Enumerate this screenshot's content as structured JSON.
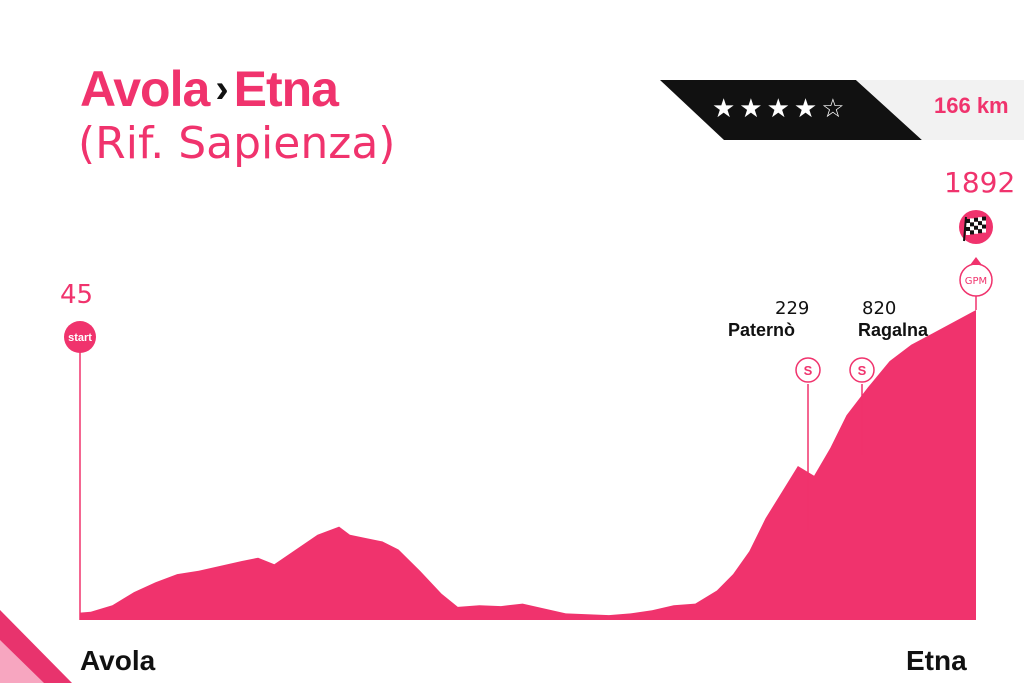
{
  "title": {
    "start": "Avola",
    "separator": "›",
    "end": "Etna",
    "subtitle": "(Rif. Sapienza)"
  },
  "difficulty": {
    "stars_text": "★★★★☆",
    "stars_filled": 4,
    "stars_total": 5
  },
  "distance": "166 km",
  "start_marker": {
    "altitude": "45",
    "label": "start"
  },
  "finish_marker": {
    "altitude": "1892",
    "label": "GPM",
    "icon": "checkered-flag-icon"
  },
  "sprints": [
    {
      "altitude": "229",
      "town": "Paternò",
      "label": "S"
    },
    {
      "altitude": "820",
      "town": "Ragalna",
      "label": "S"
    }
  ],
  "bottom": {
    "start_place": "Avola",
    "end_place": "Etna"
  },
  "colors": {
    "accent": "#f0336d",
    "dark": "#111111",
    "light_band": "#f2f2f2"
  },
  "chart_data": {
    "type": "area",
    "profile": [
      [
        0,
        45
      ],
      [
        2,
        50
      ],
      [
        6,
        90
      ],
      [
        10,
        170
      ],
      [
        14,
        230
      ],
      [
        18,
        280
      ],
      [
        22,
        300
      ],
      [
        26,
        330
      ],
      [
        30,
        360
      ],
      [
        33,
        380
      ],
      [
        36,
        340
      ],
      [
        40,
        430
      ],
      [
        44,
        520
      ],
      [
        48,
        570
      ],
      [
        50,
        520
      ],
      [
        53,
        500
      ],
      [
        56,
        480
      ],
      [
        59,
        430
      ],
      [
        63,
        300
      ],
      [
        67,
        160
      ],
      [
        70,
        80
      ],
      [
        74,
        90
      ],
      [
        78,
        85
      ],
      [
        82,
        100
      ],
      [
        86,
        70
      ],
      [
        90,
        40
      ],
      [
        94,
        35
      ],
      [
        98,
        30
      ],
      [
        102,
        40
      ],
      [
        106,
        60
      ],
      [
        110,
        90
      ],
      [
        114,
        100
      ],
      [
        118,
        180
      ],
      [
        121,
        280
      ],
      [
        124,
        420
      ],
      [
        127,
        620
      ],
      [
        130,
        780
      ],
      [
        133,
        940
      ],
      [
        136,
        880
      ],
      [
        139,
        1050
      ],
      [
        142,
        1250
      ],
      [
        146,
        1420
      ],
      [
        150,
        1580
      ],
      [
        154,
        1680
      ],
      [
        158,
        1750
      ],
      [
        166,
        1892
      ]
    ]
  }
}
